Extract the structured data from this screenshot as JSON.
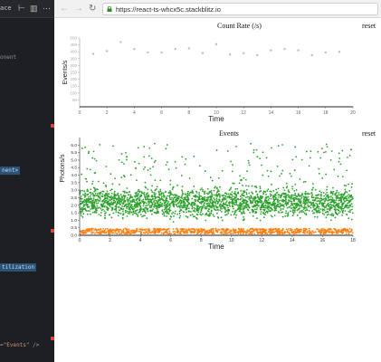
{
  "editor": {
    "title": "ace",
    "lines": [
      {
        "text": "onent",
        "top": 60
      },
      {
        "text": "nent>",
        "top": 185,
        "highlight": true
      },
      {
        "text": "tilization",
        "top": 292,
        "highlight": true
      }
    ],
    "bottom_line": {
      "prefix": "=",
      "string": "\"Events\"",
      "suffix": " />"
    }
  },
  "browser": {
    "url": "https://react-ts-whcx5c.stackblitz.io",
    "back_glyph": "←",
    "forward_glyph": "→",
    "reload_glyph": "↻"
  },
  "charts": {
    "count_rate": {
      "title": "Count Rate (/s)",
      "reset_label": "reset",
      "xlabel": "Time",
      "ylabel": "Events/s",
      "x_ticks": [
        "0",
        "2",
        "4",
        "6",
        "8",
        "10",
        "12",
        "14",
        "16",
        "18",
        "20"
      ],
      "y_ticks": [
        "50",
        "100",
        "150",
        "200",
        "250",
        "300",
        "350",
        "400",
        "450",
        "500"
      ]
    },
    "events": {
      "title": "Events",
      "reset_label": "reset",
      "xlabel": "Time",
      "ylabel": "Photons/s",
      "x_ticks": [
        "0",
        "2",
        "4",
        "6",
        "8",
        "10",
        "12",
        "14",
        "16",
        "18"
      ],
      "y_ticks": [
        "0.0",
        "0.5",
        "1.0",
        "1.5",
        "2.0",
        "2.5",
        "3.0",
        "3.5",
        "4.0",
        "4.5",
        "5.0",
        "5.5",
        "6.0"
      ]
    }
  },
  "chart_data": [
    {
      "type": "scatter",
      "title": "Count Rate (/s)",
      "xlabel": "Time",
      "ylabel": "Events/s",
      "xlim": [
        0,
        20
      ],
      "ylim": [
        0,
        500
      ],
      "color": "#bbbbbb",
      "x": [
        1,
        2,
        3,
        4,
        5,
        6,
        7,
        8,
        9,
        10,
        11,
        12,
        13,
        14,
        15,
        16,
        17,
        18,
        19
      ],
      "y": [
        385,
        405,
        470,
        420,
        395,
        395,
        420,
        425,
        390,
        455,
        380,
        390,
        375,
        410,
        420,
        410,
        375,
        395,
        400
      ]
    },
    {
      "type": "scatter",
      "title": "Events",
      "xlabel": "Time",
      "ylabel": "Photons/s",
      "xlim": [
        0,
        18
      ],
      "ylim": [
        0,
        6.5
      ],
      "series": [
        {
          "color": "#2ca02c",
          "y_range": [
            0.8,
            3.2
          ],
          "outlier_max": 6.1
        },
        {
          "color": "#ff7f0e",
          "y_range": [
            0.1,
            0.45
          ]
        }
      ]
    }
  ]
}
